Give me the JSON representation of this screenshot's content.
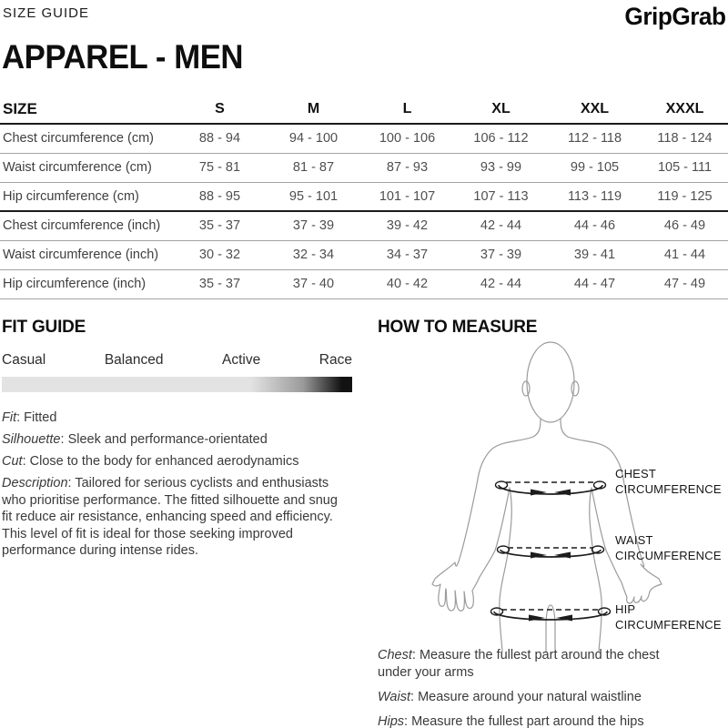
{
  "header": {
    "eyebrow": "SIZE GUIDE",
    "brand": "GripGrab"
  },
  "title": "APPAREL - MEN",
  "size_table": {
    "columns": [
      "SIZE",
      "S",
      "M",
      "L",
      "XL",
      "XXL",
      "XXXL"
    ],
    "rows": [
      {
        "label": "Chest circumference (cm)",
        "values": [
          "88 - 94",
          "94 - 100",
          "100 - 106",
          "106 - 112",
          "112 - 118",
          "118 - 124"
        ],
        "group_end": false
      },
      {
        "label": "Waist circumference (cm)",
        "values": [
          "75 - 81",
          "81 - 87",
          "87 - 93",
          "93 - 99",
          "99 - 105",
          "105 - 111"
        ],
        "group_end": false
      },
      {
        "label": "Hip circumference (cm)",
        "values": [
          "88 - 95",
          "95 - 101",
          "101 - 107",
          "107 - 113",
          "113 - 119",
          "119 - 125"
        ],
        "group_end": true
      },
      {
        "label": "Chest circumference (inch)",
        "values": [
          "35 - 37",
          "37 - 39",
          "39 - 42",
          "42 - 44",
          "44 - 46",
          "46 - 49"
        ],
        "group_end": false
      },
      {
        "label": "Waist circumference (inch)",
        "values": [
          "30 - 32",
          "32 - 34",
          "34 - 37",
          "37 - 39",
          "39 - 41",
          "41 - 44"
        ],
        "group_end": false
      },
      {
        "label": "Hip circumference (inch)",
        "values": [
          "35 - 37",
          "37 - 40",
          "40 - 42",
          "42 - 44",
          "44 - 47",
          "47 - 49"
        ],
        "group_end": false
      }
    ]
  },
  "fit_guide": {
    "heading": "FIT GUIDE",
    "sep": ": ",
    "scale_labels": [
      "Casual",
      "Balanced",
      "Active",
      "Race"
    ],
    "attributes": [
      {
        "label": "Fit",
        "text": "Fitted"
      },
      {
        "label": "Silhouette",
        "text": "Sleek and performance-orientated"
      },
      {
        "label": "Cut",
        "text": "Close to the body for enhanced aerodynamics"
      },
      {
        "label": "Description",
        "text": "Tailored for serious cyclists and enthusiasts who prioritise performance. The fitted silhouette and snug fit reduce air resistance, enhancing speed and efficiency. This level of fit is ideal for those seeking improved performance during intense rides."
      }
    ]
  },
  "how_to_measure": {
    "heading": "HOW TO MEASURE",
    "diagram_labels": [
      {
        "line1": "CHEST",
        "line2": "CIRCUMFERENCE"
      },
      {
        "line1": "WAIST",
        "line2": "CIRCUMFERENCE"
      },
      {
        "line1": "HIP",
        "line2": "CIRCUMFERENCE"
      }
    ],
    "notes": [
      {
        "label": "Chest",
        "text": "Measure the fullest part around the chest under your arms"
      },
      {
        "label": "Waist",
        "text": "Measure around your natural waistline"
      },
      {
        "label": "Hips",
        "text": "Measure the fullest part around the hips"
      }
    ]
  },
  "colors": {
    "text-primary": "#141414",
    "text-secondary": "#4f4f4f",
    "rule-thin": "#a3a3a3",
    "rule-thick": "#1a1a1a",
    "figure-outline": "#9b9b9b",
    "tape": "#1c1c1c",
    "bar-light": "#e3e3e3",
    "bar-dark": "#121212"
  }
}
